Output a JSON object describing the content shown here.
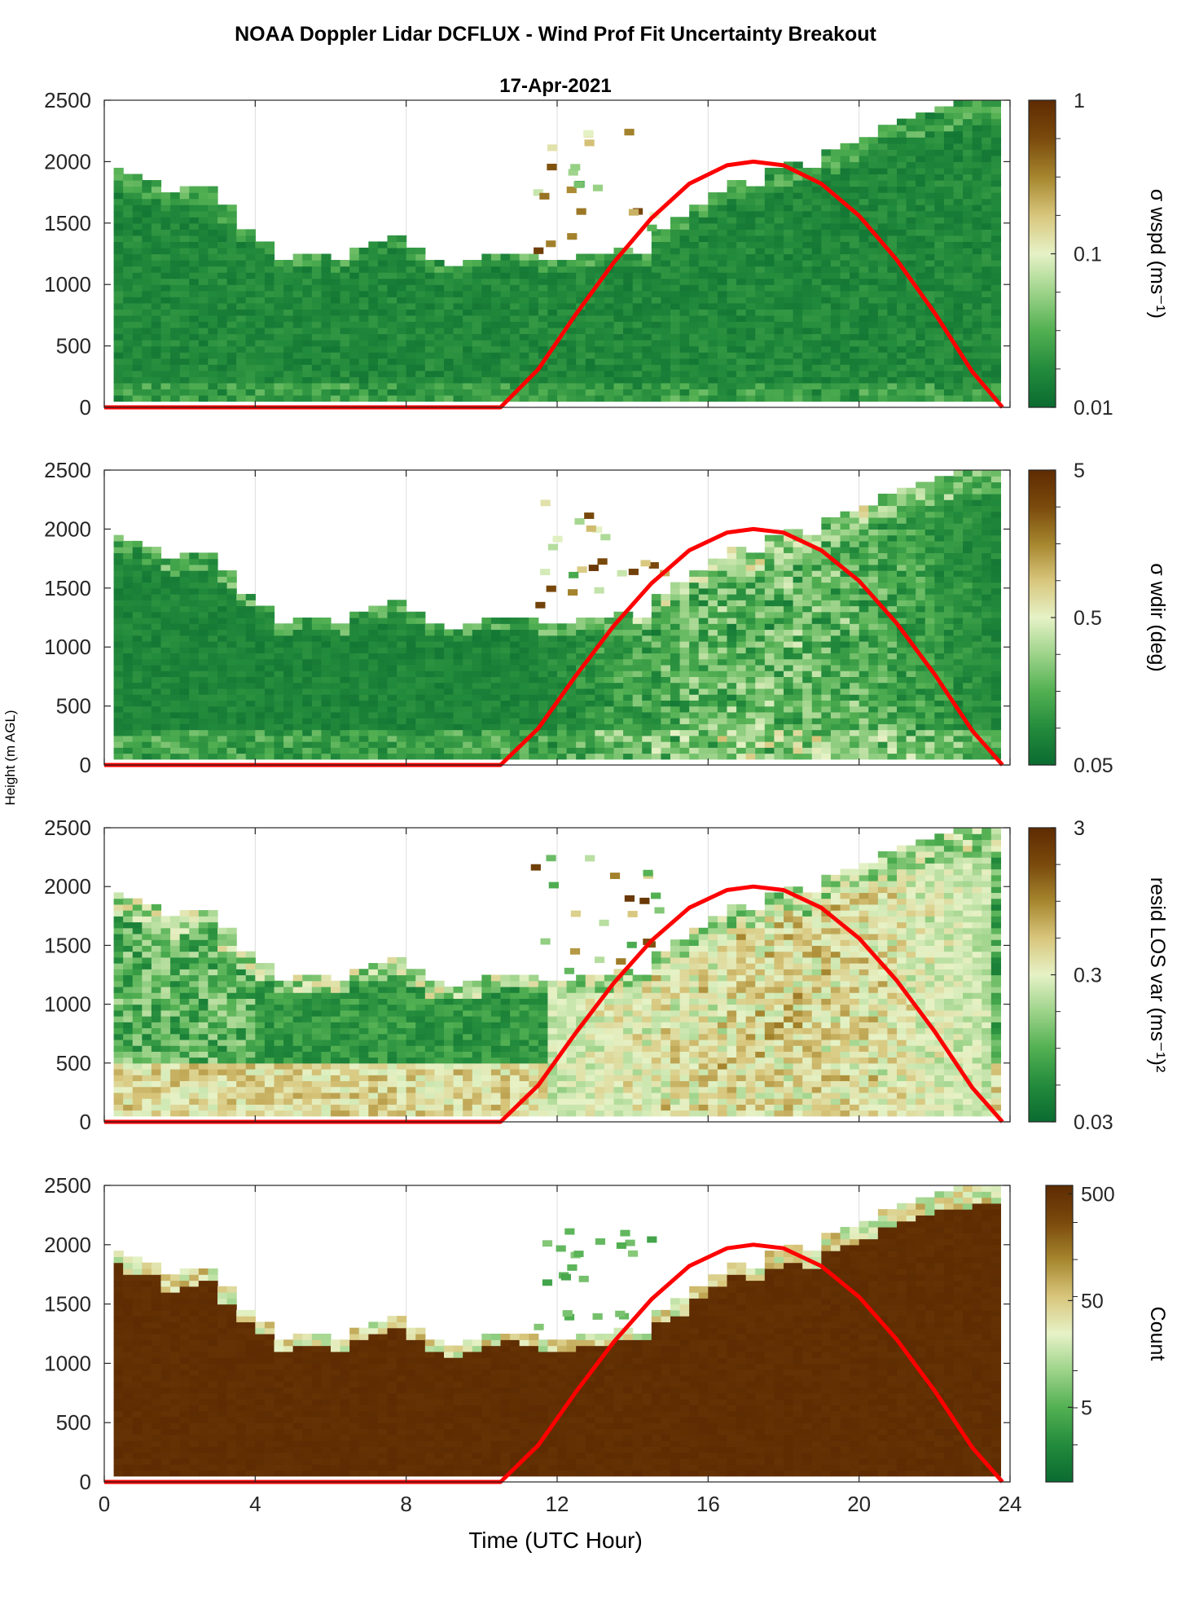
{
  "figure": {
    "title": "NOAA Doppler Lidar DCFLUX - Wind Prof Fit Uncertainty Breakout",
    "date": "17-Apr-2021",
    "ylabel": "Height (m AGL)",
    "xlabel": "Time (UTC Hour)"
  },
  "colors": {
    "sun_curve": "#ff0000",
    "colormap": [
      "#0a6b30",
      "#238b3c",
      "#52b052",
      "#9dd38a",
      "#e6f2c6",
      "#d8c67c",
      "#a6862e",
      "#7a4a0c",
      "#5e2b02"
    ]
  },
  "chart_data": [
    {
      "type": "heatmap",
      "name": "sigma_wspd",
      "cbar_label": "σ wspd (ms⁻¹)",
      "cbar_scale": "log",
      "cbar_range": [
        0.01,
        1
      ],
      "cbar_ticks": [
        "1",
        "0.1",
        "0.01"
      ],
      "xlim": [
        0,
        24
      ],
      "ylim": [
        0,
        2500
      ],
      "xticks": [
        "0",
        "4",
        "8",
        "12",
        "16",
        "20",
        "24"
      ],
      "yticks": [
        "0",
        "500",
        "1000",
        "1500",
        "2000",
        "2500"
      ]
    },
    {
      "type": "heatmap",
      "name": "sigma_wdir",
      "cbar_label": "σ wdir (deg)",
      "cbar_scale": "log",
      "cbar_range": [
        0.05,
        5
      ],
      "cbar_ticks": [
        "5",
        "0.5",
        "0.05"
      ],
      "xlim": [
        0,
        24
      ],
      "ylim": [
        0,
        2500
      ],
      "xticks": [
        "0",
        "4",
        "8",
        "12",
        "16",
        "20",
        "24"
      ],
      "yticks": [
        "0",
        "500",
        "1000",
        "1500",
        "2000",
        "2500"
      ]
    },
    {
      "type": "heatmap",
      "name": "resid_los_var",
      "cbar_label": "resid LOS var (ms⁻¹)²",
      "cbar_scale": "log",
      "cbar_range": [
        0.03,
        3
      ],
      "cbar_ticks": [
        "3",
        "0.3",
        "0.03"
      ],
      "xlim": [
        0,
        24
      ],
      "ylim": [
        0,
        2500
      ],
      "xticks": [
        "0",
        "4",
        "8",
        "12",
        "16",
        "20",
        "24"
      ],
      "yticks": [
        "0",
        "500",
        "1000",
        "1500",
        "2000",
        "2500"
      ]
    },
    {
      "type": "heatmap",
      "name": "count",
      "cbar_label": "Count",
      "cbar_scale": "log",
      "cbar_range": [
        1,
        600
      ],
      "cbar_ticks": [
        "500",
        "50",
        "5"
      ],
      "xlim": [
        0,
        24
      ],
      "ylim": [
        0,
        2500
      ],
      "xticks": [
        "0",
        "4",
        "8",
        "12",
        "16",
        "20",
        "24"
      ],
      "yticks": [
        "0",
        "500",
        "1000",
        "1500",
        "2000",
        "2500"
      ]
    }
  ],
  "overlay": {
    "type": "line",
    "description_values": "relative solar elevation curve",
    "x": [
      0,
      10.5,
      11.5,
      12.5,
      13.5,
      14.5,
      15.5,
      16.5,
      17.2,
      18,
      19,
      20,
      21,
      22,
      23,
      23.8
    ],
    "y": [
      0,
      0,
      310,
      760,
      1180,
      1540,
      1820,
      1970,
      2000,
      1970,
      1820,
      1560,
      1200,
      770,
      290,
      0
    ]
  },
  "boundary_layer_top": {
    "hours": [
      0.25,
      0.75,
      1.25,
      1.75,
      2.25,
      2.75,
      3.25,
      3.75,
      4.25,
      4.75,
      5.25,
      5.75,
      6.25,
      6.75,
      7.25,
      7.75,
      8.25,
      8.75,
      9.25,
      9.75,
      10.25,
      10.75,
      11.25,
      11.75,
      12.25,
      12.75,
      13.25,
      13.75,
      14.25,
      14.75,
      15.25,
      15.75,
      16.25,
      16.75,
      17.25,
      17.75,
      18.25,
      18.75,
      19.25,
      19.75,
      20.25,
      20.75,
      21.25,
      21.75,
      22.25,
      22.75,
      23.25,
      23.75
    ],
    "height_m": [
      1940,
      1880,
      1840,
      1700,
      1750,
      1780,
      1600,
      1440,
      1330,
      1180,
      1210,
      1200,
      1180,
      1280,
      1300,
      1370,
      1260,
      1150,
      1120,
      1150,
      1200,
      1240,
      1200,
      1180,
      1180,
      1210,
      1220,
      1250,
      1240,
      1420,
      1500,
      1640,
      1740,
      1830,
      1790,
      1900,
      1950,
      1930,
      2050,
      2130,
      2180,
      2260,
      2340,
      2380,
      2440,
      2460,
      2490,
      2480
    ]
  }
}
